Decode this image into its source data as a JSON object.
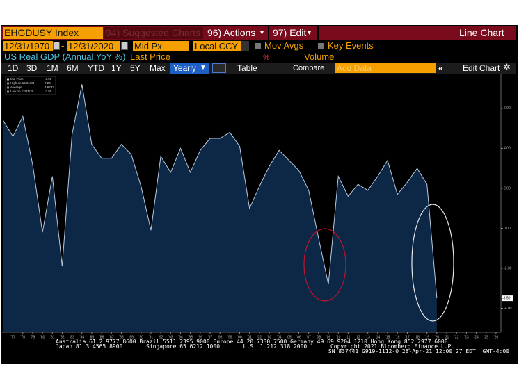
{
  "toolbar": {
    "ticker": "EHGDUSY Index",
    "suggested": "94) Suggested Charts",
    "actions": "96) Actions",
    "edit": "97) Edit",
    "chart_type": "Line Chart",
    "start_date": "12/31/1970",
    "end_date": "12/31/2020",
    "price_type": "Mid Px",
    "currency": "Local CCY",
    "mov_avgs": "Mov Avgs",
    "key_events": "Key Events",
    "security": "US Real GDP (Annual YoY %)",
    "field": "Last Price",
    "unit": "%",
    "volume": "Volume",
    "periods": [
      "1D",
      "3D",
      "1M",
      "6M",
      "YTD",
      "1Y",
      "5Y",
      "Max"
    ],
    "frequency": "Yearly",
    "table": "Table",
    "compare": "Compare",
    "add_data": "Add Data",
    "edit_chart": "Edit Chart"
  },
  "chart_data": {
    "type": "line",
    "color": "#b8cbe0",
    "fill": "#0c2846",
    "legend": [
      {
        "label": "Mid Price",
        "value": "-3.50"
      },
      {
        "label": "High on 12/31/84",
        "value": "7.20"
      },
      {
        "label": "Average",
        "value": "2.6733"
      },
      {
        "label": "Low on 12/31/20",
        "value": "-3.50"
      }
    ],
    "last_label": "-3.50",
    "x": [
      1976,
      1977,
      1978,
      1979,
      1980,
      1981,
      1982,
      1983,
      1984,
      1985,
      1986,
      1987,
      1988,
      1989,
      1990,
      1991,
      1992,
      1993,
      1994,
      1995,
      1996,
      1997,
      1998,
      1999,
      2000,
      2001,
      2002,
      2003,
      2004,
      2005,
      2006,
      2007,
      2008,
      2009,
      2010,
      2011,
      2012,
      2013,
      2014,
      2015,
      2016,
      2017,
      2018,
      2019,
      2020
    ],
    "values": [
      5.4,
      4.6,
      5.6,
      3.2,
      -0.2,
      2.6,
      -1.9,
      4.7,
      7.2,
      4.2,
      3.5,
      3.5,
      4.2,
      3.7,
      2.1,
      -0.1,
      3.6,
      2.8,
      4.0,
      2.8,
      3.9,
      4.5,
      4.5,
      4.8,
      4.1,
      1.0,
      2.1,
      3.1,
      3.9,
      3.4,
      2.9,
      1.9,
      -0.5,
      -2.8,
      2.6,
      1.6,
      2.2,
      1.9,
      2.6,
      3.4,
      1.7,
      2.3,
      3.0,
      2.2,
      -3.5
    ],
    "xlim": [
      1975.9,
      2026.5
    ],
    "ylim": [
      -5.2,
      7.7
    ],
    "yticks": [
      {
        "value": 6,
        "label": "6.00"
      },
      {
        "value": 4,
        "label": "4.00"
      },
      {
        "value": 2,
        "label": "2.00"
      },
      {
        "value": 0,
        "label": "0.00"
      },
      {
        "value": -2,
        "label": "-2.00"
      },
      {
        "value": -4,
        "label": "-4.00"
      }
    ],
    "xticks": [
      {
        "value": 1977,
        "label": "'77"
      },
      {
        "value": 1978,
        "label": "'78"
      },
      {
        "value": 1979,
        "label": "'79"
      },
      {
        "value": 1980,
        "label": "'80"
      },
      {
        "value": 1981,
        "label": "'81"
      },
      {
        "value": 1982,
        "label": "'82"
      },
      {
        "value": 1983,
        "label": "'83"
      },
      {
        "value": 1984,
        "label": "'84"
      },
      {
        "value": 1985,
        "label": "'85"
      },
      {
        "value": 1986,
        "label": "'86"
      },
      {
        "value": 1987,
        "label": "'87"
      },
      {
        "value": 1988,
        "label": "'88"
      },
      {
        "value": 1989,
        "label": "'89"
      },
      {
        "value": 1990,
        "label": "'90"
      },
      {
        "value": 1991,
        "label": "'91"
      },
      {
        "value": 1992,
        "label": "'92"
      },
      {
        "value": 1993,
        "label": "'93"
      },
      {
        "value": 1994,
        "label": "'94"
      },
      {
        "value": 1995,
        "label": "'95"
      },
      {
        "value": 1996,
        "label": "'96"
      },
      {
        "value": 1997,
        "label": "'97"
      },
      {
        "value": 1998,
        "label": "'98"
      },
      {
        "value": 1999,
        "label": "'99"
      },
      {
        "value": 2000,
        "label": "'00"
      },
      {
        "value": 2001,
        "label": "'01"
      },
      {
        "value": 2002,
        "label": "'02"
      },
      {
        "value": 2003,
        "label": "'03"
      },
      {
        "value": 2004,
        "label": "'04"
      },
      {
        "value": 2005,
        "label": "'05"
      },
      {
        "value": 2006,
        "label": "'06"
      },
      {
        "value": 2007,
        "label": "'07"
      },
      {
        "value": 2008,
        "label": "'08"
      },
      {
        "value": 2009,
        "label": "'09"
      },
      {
        "value": 2010,
        "label": "'10"
      },
      {
        "value": 2011,
        "label": "'11"
      },
      {
        "value": 2012,
        "label": "'12"
      },
      {
        "value": 2013,
        "label": "'13"
      },
      {
        "value": 2014,
        "label": "'14"
      },
      {
        "value": 2015,
        "label": "'15"
      },
      {
        "value": 2016,
        "label": "'16"
      },
      {
        "value": 2017,
        "label": "'17"
      },
      {
        "value": 2018,
        "label": "'18"
      },
      {
        "value": 2019,
        "label": "'19"
      },
      {
        "value": 2020,
        "label": "'20"
      },
      {
        "value": 2021,
        "label": "'21"
      },
      {
        "value": 2022,
        "label": "'22"
      },
      {
        "value": 2023,
        "label": "'23"
      },
      {
        "value": 2024,
        "label": "'24"
      },
      {
        "value": 2025,
        "label": "'25"
      },
      {
        "value": 2026,
        "label": "'26"
      }
    ]
  },
  "footer": {
    "line1": "Australia 61 2 9777 8600 Brazil 5511 2395 9000 Europe 44 20 7330 7500 Germany 49 69 9204 1210 Hong Kong 852 2977 6000",
    "line2": "Japan 81 3 4565 8900       Singapore 65 6212 1000       U.S. 1 212 318 2000       Copyright 2021 Bloomberg Finance L.P.",
    "line3": "SN 837441 G919-1112-0 28-Apr-21 12:00:27 EDT  GMT-4:00"
  }
}
